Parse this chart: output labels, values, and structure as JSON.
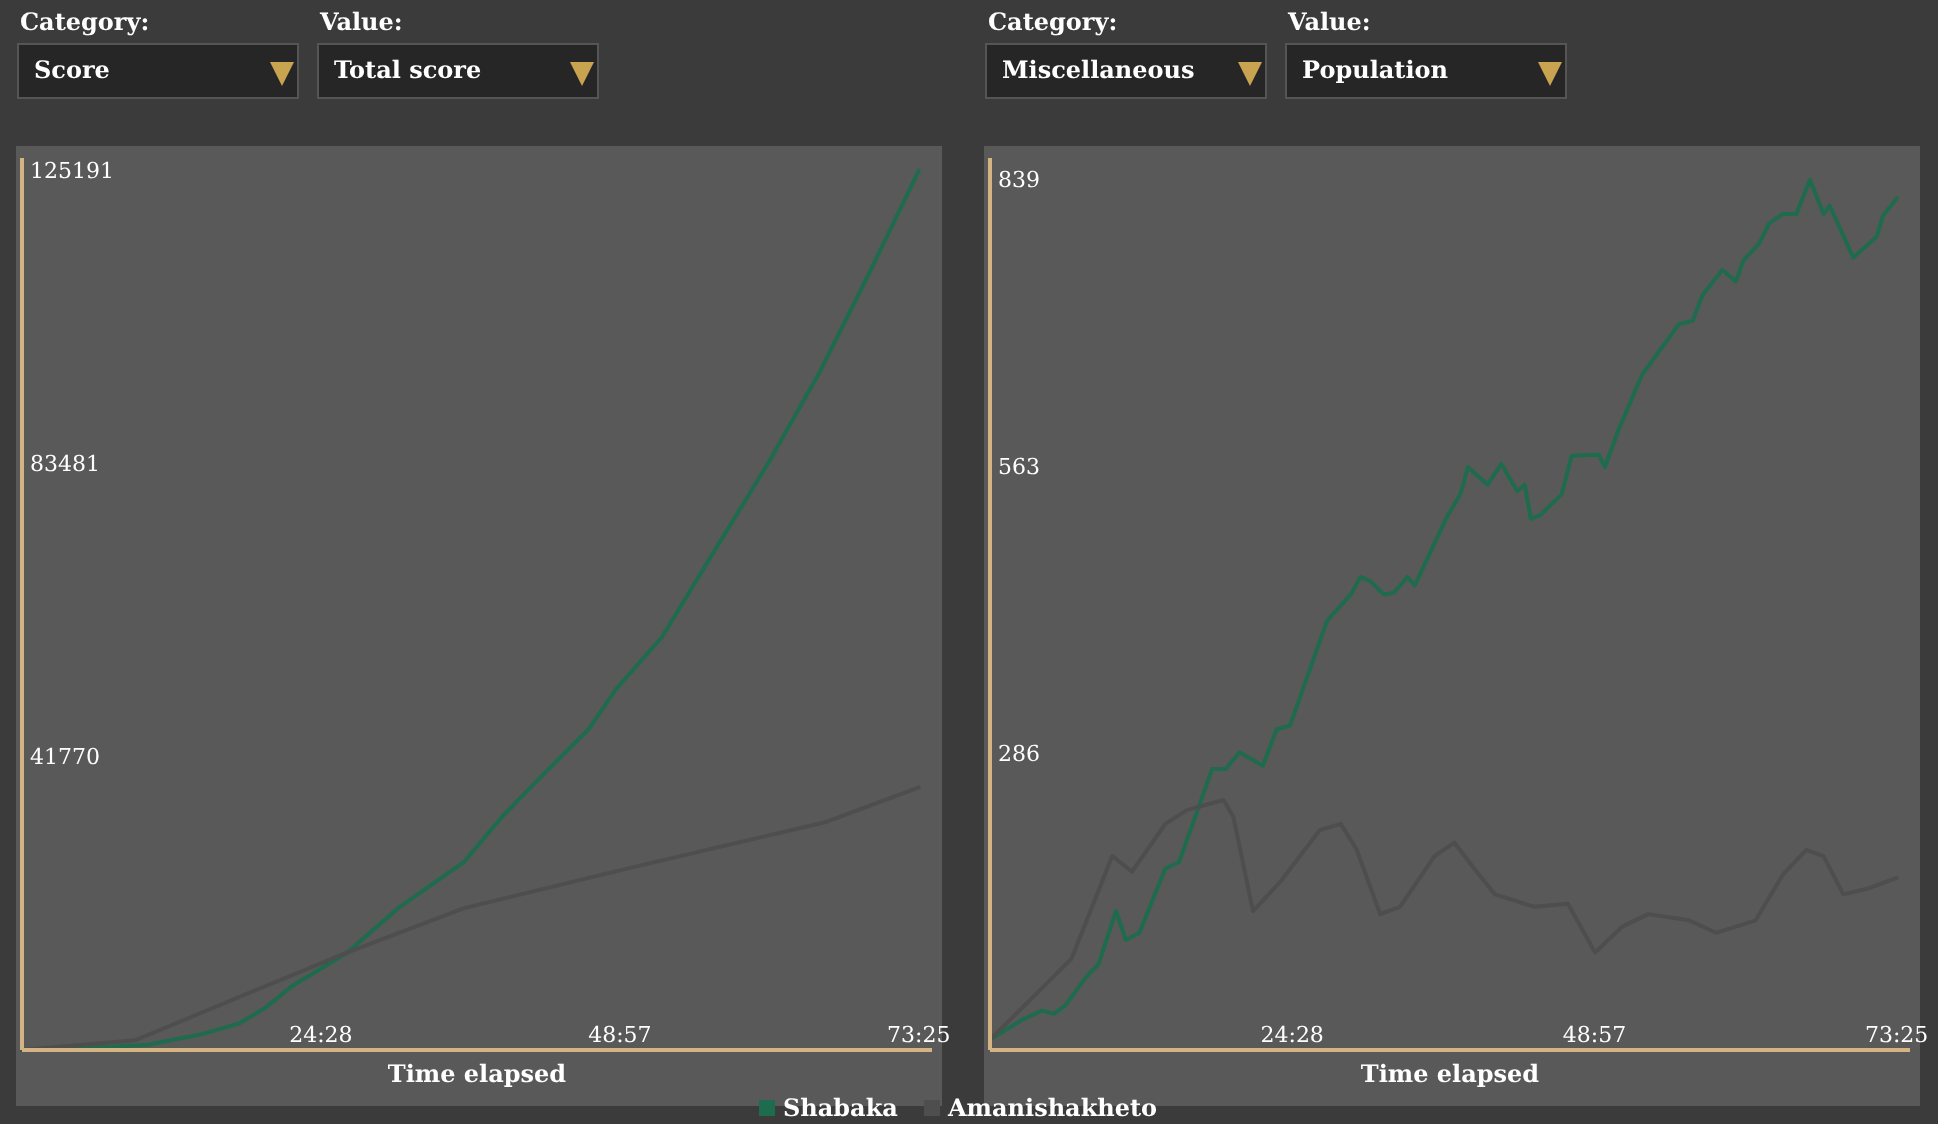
{
  "chart_data": [
    {
      "type": "line",
      "annotations": [
        "Category:",
        "Score",
        "Value:",
        "Total score"
      ],
      "xlabel": "Time elapsed",
      "xlim": [
        0,
        74.5
      ],
      "xticks": [
        {
          "value": 24.47,
          "label": "24:28"
        },
        {
          "value": 48.95,
          "label": "48:57"
        },
        {
          "value": 73.42,
          "label": "73:25"
        }
      ],
      "ylim": [
        0,
        127000
      ],
      "yticks": [
        41770,
        83481,
        125191
      ],
      "legend": "bottom",
      "grid": false,
      "series": [
        {
          "name": "Shabaka",
          "color": "#1f6b4e",
          "x": [
            0,
            5.4,
            10.3,
            14.6,
            17.8,
            20.0,
            22.1,
            26.5,
            30.8,
            36.2,
            39.4,
            42.6,
            46.4,
            48.6,
            52.4,
            56.7,
            61.0,
            65.3,
            69.1,
            73.42
          ],
          "values": [
            0,
            300,
            750,
            2200,
            3800,
            6100,
            9100,
            13700,
            20200,
            26800,
            33400,
            39100,
            45700,
            51300,
            58800,
            71100,
            83300,
            96500,
            109700,
            125191
          ]
        },
        {
          "name": "Amanishakheto",
          "color": "#4e4e4e",
          "x": [
            0,
            9.3,
            18.4,
            26.5,
            36.2,
            49.7,
            65.9,
            73.42
          ],
          "values": [
            0,
            1400,
            8000,
            13800,
            20200,
            25900,
            32500,
            37400
          ]
        }
      ]
    },
    {
      "type": "line",
      "annotations": [
        "Category:",
        "Miscellaneous",
        "Value:",
        "Population"
      ],
      "xlabel": "Time elapsed",
      "xlim": [
        0,
        74.5
      ],
      "xticks": [
        {
          "value": 24.47,
          "label": "24:28"
        },
        {
          "value": 48.95,
          "label": "48:57"
        },
        {
          "value": 73.42,
          "label": "73:25"
        }
      ],
      "ylim": [
        0,
        860
      ],
      "yticks": [
        286,
        563,
        839
      ],
      "grid": false,
      "series": [
        {
          "color": "#1f6b4e",
          "x": [
            0,
            2.6,
            4.2,
            5.2,
            6.1,
            7.7,
            8.8,
            10.2,
            11.0,
            12.1,
            14.2,
            15.3,
            18.0,
            19.1,
            20.2,
            22.1,
            23.2,
            24.3,
            27.3,
            29.2,
            30.0,
            30.8,
            31.9,
            32.7,
            33.8,
            34.4,
            37.0,
            38.1,
            38.7,
            40.3,
            41.4,
            42.7,
            43.3,
            43.8,
            44.6,
            46.3,
            47.1,
            49.3,
            49.8,
            50.9,
            52.8,
            55.8,
            56.9,
            57.7,
            59.3,
            60.4,
            61.0,
            62.3,
            63.1,
            64.2,
            65.3,
            66.4,
            67.5,
            68.0,
            69.9,
            71.8,
            72.3,
            73.42
          ],
          "values": [
            10,
            29,
            38,
            35,
            43,
            69,
            83,
            134,
            106,
            113,
            175,
            181,
            271,
            271,
            287,
            274,
            309,
            313,
            414,
            439,
            456,
            452,
            439,
            441,
            456,
            448,
            514,
            536,
            562,
            545,
            565,
            539,
            545,
            512,
            516,
            536,
            573,
            574,
            562,
            598,
            651,
            700,
            703,
            728,
            752,
            741,
            761,
            778,
            797,
            806,
            806,
            839,
            806,
            814,
            764,
            784,
            804,
            821
          ]
        },
        {
          "color": "#4e4e4e",
          "x": [
            0,
            4.5,
            6.6,
            9.9,
            11.5,
            14.2,
            15.9,
            18.9,
            19.7,
            21.3,
            23.5,
            26.7,
            28.4,
            29.7,
            31.6,
            33.2,
            36.0,
            37.6,
            39.2,
            40.9,
            44.1,
            46.8,
            49.0,
            51.2,
            53.3,
            56.6,
            58.8,
            62.0,
            64.2,
            66.1,
            67.5,
            69.1,
            71.2,
            73.42
          ],
          "values": [
            10,
            63,
            88,
            187,
            172,
            218,
            231,
            241,
            225,
            134,
            162,
            212,
            218,
            193,
            131,
            138,
            187,
            200,
            175,
            150,
            138,
            141,
            94,
            119,
            131,
            125,
            113,
            125,
            169,
            193,
            187,
            150,
            156,
            166
          ]
        }
      ]
    }
  ]
}
